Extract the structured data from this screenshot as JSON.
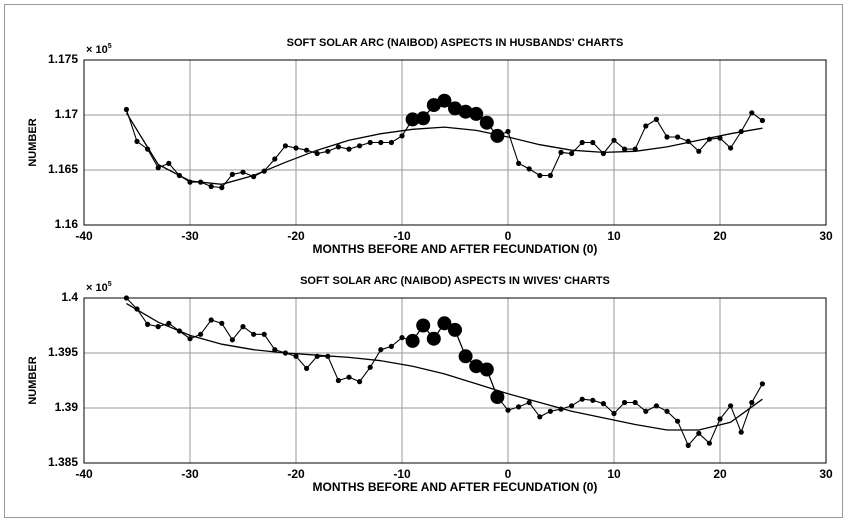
{
  "chart_data": [
    {
      "type": "line",
      "title": "SOFT SOLAR ARC (NAIBOD) ASPECTS IN HUSBANDS' CHARTS",
      "xlabel": "MONTHS BEFORE AND AFTER FECUNDATION (0)",
      "ylabel": "NUMBER",
      "y_scale_label": "× 10",
      "y_scale_exponent": "5",
      "xlim": [
        -40,
        30
      ],
      "xticks": [
        -40,
        -30,
        -20,
        -10,
        0,
        10,
        20,
        30
      ],
      "ylim": [
        1.16,
        1.175
      ],
      "yticks": [
        1.16,
        1.165,
        1.17,
        1.175
      ],
      "grid": true,
      "series": [
        {
          "color": "#000000",
          "marker": "small",
          "x": [
            -36,
            -35,
            -34,
            -33,
            -32,
            -31,
            -30,
            -29,
            -28,
            -27,
            -26,
            -25,
            -24,
            -23,
            -22,
            -21,
            -20,
            -19,
            -18,
            -17,
            -16,
            -15,
            -14,
            -13,
            -12,
            -11,
            -10,
            -9,
            -8,
            -7,
            -6,
            -5,
            -4,
            -3,
            -2,
            -1,
            0,
            1,
            2,
            3,
            4,
            5,
            6,
            7,
            8,
            9,
            10,
            11,
            12,
            13,
            14,
            15,
            16,
            17,
            18,
            19,
            20,
            21,
            22,
            23,
            24
          ],
          "values": [
            1.1705,
            1.1676,
            1.1669,
            1.1652,
            1.1656,
            1.1645,
            1.1639,
            1.1639,
            1.1635,
            1.1634,
            1.1646,
            1.1648,
            1.1644,
            1.1649,
            1.166,
            1.1672,
            1.167,
            1.1668,
            1.1665,
            1.1667,
            1.1671,
            1.1669,
            1.1672,
            1.1675,
            1.1675,
            1.1675,
            1.1681,
            1.1696,
            1.1697,
            1.1709,
            1.1713,
            1.1706,
            1.1703,
            1.1701,
            1.1693,
            1.1681,
            1.1685,
            1.1656,
            1.1651,
            1.1645,
            1.1645,
            1.1666,
            1.1665,
            1.1675,
            1.1675,
            1.1665,
            1.1677,
            1.1669,
            1.1669,
            1.169,
            1.1696,
            1.168,
            1.168,
            1.1676,
            1.1667,
            1.1678,
            1.1679,
            1.167,
            1.1685,
            1.1702,
            1.1695
          ]
        },
        {
          "color": "#000000",
          "marker": "none",
          "x": [
            -36,
            -33,
            -30,
            -27,
            -24,
            -21,
            -18,
            -15,
            -12,
            -9,
            -6,
            -3,
            0,
            3,
            6,
            9,
            12,
            15,
            18,
            21,
            24
          ],
          "values": [
            1.1702,
            1.1655,
            1.164,
            1.1637,
            1.1645,
            1.1657,
            1.1668,
            1.1677,
            1.1683,
            1.1687,
            1.1689,
            1.1686,
            1.168,
            1.1673,
            1.1668,
            1.1666,
            1.1667,
            1.1671,
            1.1677,
            1.1683,
            1.1688
          ]
        },
        {
          "color": "#000000",
          "marker": "large",
          "x": [
            -9,
            -8,
            -7,
            -6,
            -5,
            -4,
            -3,
            -2,
            -1
          ],
          "values": [
            1.1696,
            1.1697,
            1.1709,
            1.1713,
            1.1706,
            1.1703,
            1.1701,
            1.1693,
            1.1681
          ]
        }
      ]
    },
    {
      "type": "line",
      "title": "SOFT SOLAR ARC (NAIBOD) ASPECTS IN WIVES' CHARTS",
      "xlabel": "MONTHS BEFORE AND AFTER FECUNDATION (0)",
      "ylabel": "NUMBER",
      "y_scale_label": "× 10",
      "y_scale_exponent": "5",
      "xlim": [
        -40,
        30
      ],
      "xticks": [
        -40,
        -30,
        -20,
        -10,
        0,
        10,
        20,
        30
      ],
      "ylim": [
        1.385,
        1.4
      ],
      "yticks": [
        1.385,
        1.39,
        1.395,
        1.4
      ],
      "grid": true,
      "series": [
        {
          "color": "#000000",
          "marker": "small",
          "x": [
            -36,
            -35,
            -34,
            -33,
            -32,
            -31,
            -30,
            -29,
            -28,
            -27,
            -26,
            -25,
            -24,
            -23,
            -22,
            -21,
            -20,
            -19,
            -18,
            -17,
            -16,
            -15,
            -14,
            -13,
            -12,
            -11,
            -10,
            -9,
            -8,
            -7,
            -6,
            -5,
            -4,
            -3,
            -2,
            -1,
            0,
            1,
            2,
            3,
            4,
            5,
            6,
            7,
            8,
            9,
            10,
            11,
            12,
            13,
            14,
            15,
            16,
            17,
            18,
            19,
            20,
            21,
            22,
            23,
            24
          ],
          "values": [
            1.4,
            1.399,
            1.3976,
            1.3974,
            1.3977,
            1.397,
            1.3963,
            1.3967,
            1.398,
            1.3977,
            1.3962,
            1.3974,
            1.3967,
            1.3967,
            1.3953,
            1.395,
            1.3947,
            1.3936,
            1.3947,
            1.3947,
            1.3925,
            1.3928,
            1.3924,
            1.3937,
            1.3953,
            1.3956,
            1.3964,
            1.3961,
            1.3975,
            1.3963,
            1.3977,
            1.3971,
            1.3947,
            1.3938,
            1.3935,
            1.391,
            1.3898,
            1.3901,
            1.3905,
            1.3892,
            1.3897,
            1.3899,
            1.3902,
            1.3908,
            1.3907,
            1.3904,
            1.3895,
            1.3905,
            1.3905,
            1.3897,
            1.3902,
            1.3897,
            1.3888,
            1.3866,
            1.3877,
            1.3868,
            1.389,
            1.3902,
            1.3878,
            1.3905,
            1.3922
          ]
        },
        {
          "color": "#000000",
          "marker": "none",
          "x": [
            -36,
            -33,
            -30,
            -27,
            -24,
            -21,
            -18,
            -15,
            -12,
            -9,
            -6,
            -3,
            0,
            3,
            6,
            9,
            12,
            15,
            18,
            21,
            24
          ],
          "values": [
            1.3995,
            1.3978,
            1.3966,
            1.3958,
            1.3953,
            1.395,
            1.3948,
            1.3946,
            1.3943,
            1.3938,
            1.3931,
            1.3922,
            1.3913,
            1.3905,
            1.3897,
            1.3891,
            1.3885,
            1.388,
            1.388,
            1.3887,
            1.3908
          ]
        },
        {
          "color": "#000000",
          "marker": "large",
          "x": [
            -9,
            -8,
            -7,
            -6,
            -5,
            -4,
            -3,
            -2,
            -1
          ],
          "values": [
            1.3961,
            1.3975,
            1.3963,
            1.3977,
            1.3971,
            1.3947,
            1.3938,
            1.3935,
            1.391
          ]
        }
      ]
    }
  ]
}
